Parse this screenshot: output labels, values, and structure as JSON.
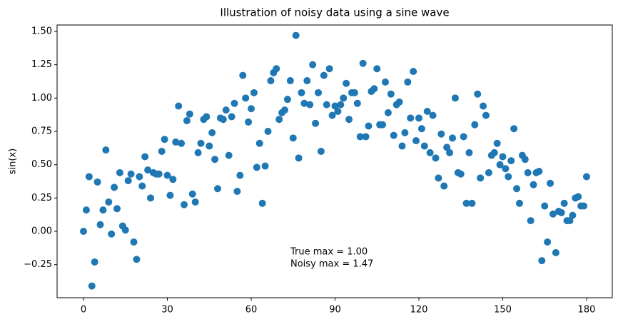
{
  "chart_data": {
    "type": "scatter",
    "title": "Illustration of noisy data using a sine wave",
    "y_label": "sin(x)",
    "x": [
      0,
      1,
      2,
      3,
      4,
      5,
      6,
      7,
      8,
      9,
      10,
      11,
      12,
      13,
      14,
      15,
      16,
      17,
      18,
      19,
      20,
      21,
      22,
      23,
      24,
      25,
      26,
      27,
      28,
      29,
      30,
      31,
      32,
      33,
      34,
      35,
      36,
      37,
      38,
      39,
      40,
      41,
      42,
      43,
      44,
      45,
      46,
      47,
      48,
      49,
      50,
      51,
      52,
      53,
      54,
      55,
      56,
      57,
      58,
      59,
      60,
      61,
      62,
      63,
      64,
      65,
      66,
      67,
      68,
      69,
      70,
      71,
      72,
      73,
      74,
      75,
      76,
      77,
      78,
      79,
      80,
      81,
      82,
      83,
      84,
      85,
      86,
      87,
      88,
      89,
      90,
      91,
      92,
      93,
      94,
      95,
      96,
      97,
      98,
      99,
      100,
      101,
      102,
      103,
      104,
      105,
      106,
      107,
      108,
      109,
      110,
      111,
      112,
      113,
      114,
      115,
      116,
      117,
      118,
      119,
      120,
      121,
      122,
      123,
      124,
      125,
      126,
      127,
      128,
      129,
      130,
      131,
      132,
      133,
      134,
      135,
      136,
      137,
      138,
      139,
      140,
      141,
      142,
      143,
      144,
      145,
      146,
      147,
      148,
      149,
      150,
      151,
      152,
      153,
      154,
      155,
      156,
      157,
      158,
      159,
      160,
      161,
      162,
      163,
      164,
      165,
      166,
      167,
      168,
      169,
      170,
      171,
      172,
      173,
      174,
      175,
      176,
      177,
      178,
      179,
      180
    ],
    "series": [
      {
        "color": "#1f77b4",
        "values": [
          0.0,
          0.16,
          0.41,
          -0.41,
          -0.23,
          0.37,
          0.05,
          0.16,
          0.61,
          0.22,
          -0.02,
          0.33,
          0.17,
          0.44,
          0.04,
          0.01,
          0.38,
          0.43,
          -0.08,
          -0.21,
          0.41,
          0.34,
          0.56,
          0.46,
          0.25,
          0.44,
          0.43,
          0.43,
          0.6,
          0.69,
          0.42,
          0.27,
          0.39,
          0.67,
          0.94,
          0.66,
          0.2,
          0.83,
          0.88,
          0.28,
          0.22,
          0.59,
          0.66,
          0.84,
          0.86,
          0.64,
          0.74,
          0.54,
          0.32,
          0.85,
          0.84,
          0.91,
          0.57,
          0.86,
          0.96,
          0.3,
          0.42,
          1.17,
          1.0,
          0.82,
          0.92,
          1.04,
          0.48,
          0.66,
          0.21,
          0.49,
          0.75,
          1.13,
          1.19,
          1.22,
          0.84,
          0.89,
          0.91,
          0.99,
          1.13,
          0.7,
          1.47,
          0.55,
          1.04,
          0.96,
          1.13,
          0.95,
          1.25,
          0.81,
          1.04,
          0.6,
          1.17,
          0.95,
          1.22,
          0.87,
          0.94,
          0.9,
          0.95,
          1.0,
          1.11,
          0.84,
          1.04,
          1.04,
          0.96,
          0.71,
          1.26,
          0.71,
          0.79,
          1.05,
          1.07,
          1.22,
          0.8,
          0.8,
          1.12,
          0.89,
          1.03,
          0.72,
          0.95,
          0.97,
          0.64,
          0.74,
          1.12,
          0.85,
          1.2,
          0.68,
          0.85,
          0.77,
          0.64,
          0.9,
          0.59,
          0.87,
          0.55,
          0.4,
          0.73,
          0.34,
          0.63,
          0.59,
          0.7,
          1.0,
          0.44,
          0.43,
          0.71,
          0.21,
          0.59,
          0.21,
          0.8,
          1.03,
          0.4,
          0.94,
          0.87,
          0.44,
          0.57,
          0.59,
          0.66,
          0.5,
          0.56,
          0.47,
          0.41,
          0.53,
          0.77,
          0.32,
          0.21,
          0.57,
          0.54,
          0.44,
          0.08,
          0.35,
          0.44,
          0.45,
          -0.22,
          0.19,
          -0.08,
          0.36,
          0.13,
          -0.16,
          0.15,
          0.14,
          0.21,
          0.08,
          0.08,
          0.12,
          0.25,
          0.26,
          0.19,
          0.19,
          0.41
        ]
      }
    ],
    "xlim": [
      -9.45,
      189.2
    ],
    "ylim": [
      -0.498,
      1.548
    ],
    "xticks": [
      0,
      30,
      60,
      90,
      120,
      150,
      180
    ],
    "yticks": [
      {
        "value": -0.25,
        "label": "−0.25"
      },
      {
        "value": 0,
        "label": "0.00"
      },
      {
        "value": 0.25,
        "label": "0.25"
      },
      {
        "value": 0.5,
        "label": "0.50"
      },
      {
        "value": 0.75,
        "label": "0.75"
      },
      {
        "value": 1,
        "label": "1.00"
      },
      {
        "value": 1.25,
        "label": "1.25"
      },
      {
        "value": 1.5,
        "label": "1.50"
      }
    ],
    "annotation": [
      "True max = 1.00",
      "Noisy max = 1.47"
    ]
  }
}
